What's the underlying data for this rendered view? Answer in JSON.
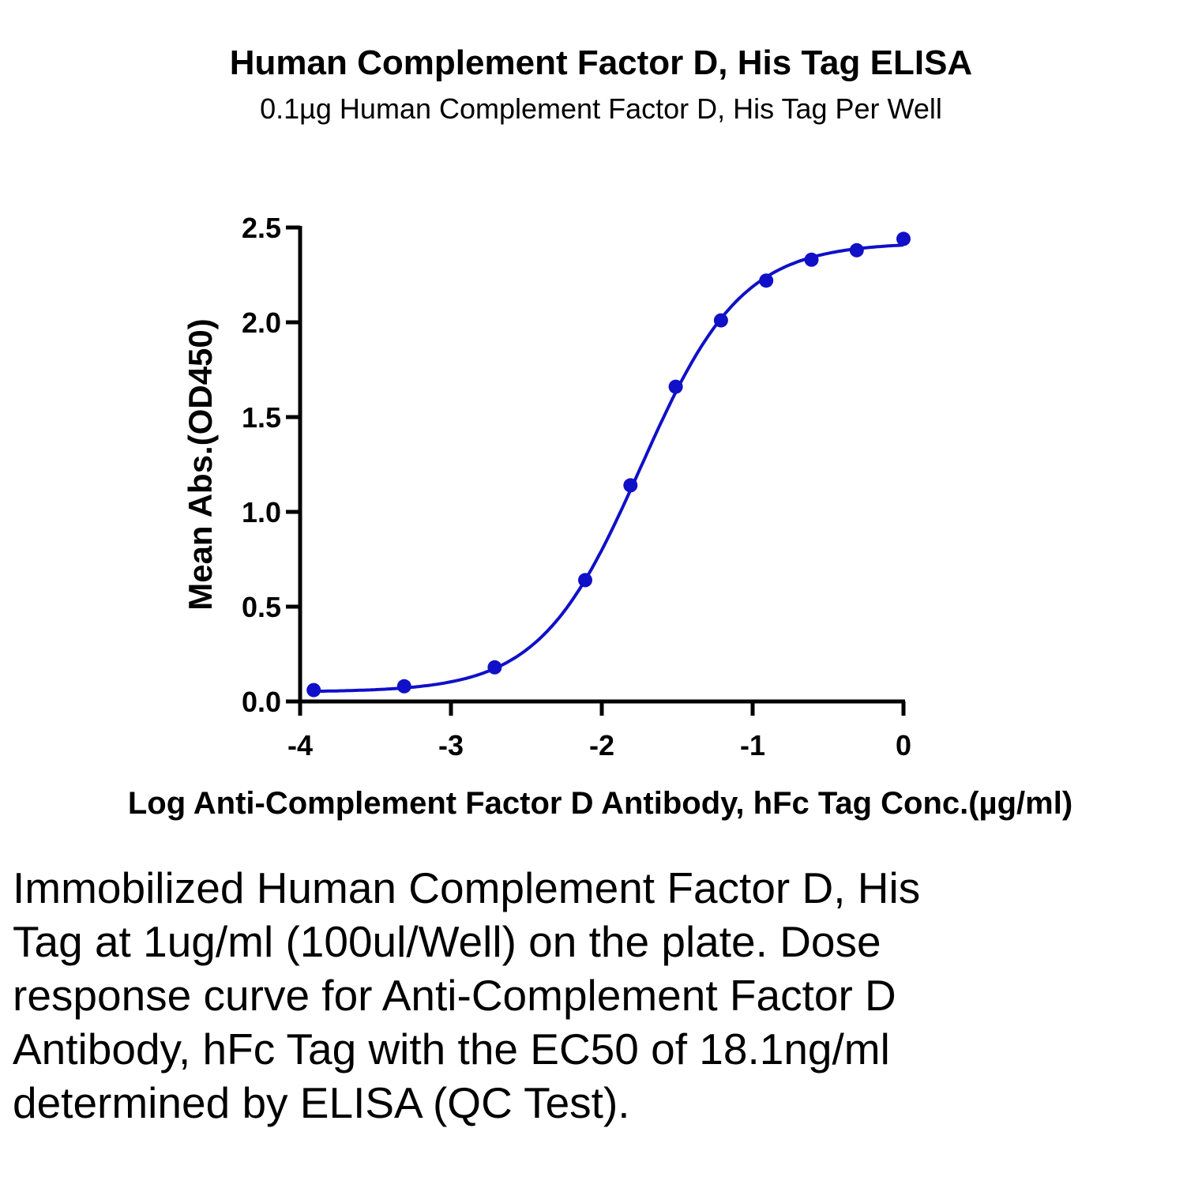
{
  "chart_data": {
    "type": "scatter",
    "title": "Human Complement Factor D, His Tag ELISA",
    "subtitle": "0.1µg Human Complement Factor D, His Tag Per Well",
    "xlabel": "Log Anti-Complement Factor D  Antibody, hFc Tag Conc.(µg/ml)",
    "ylabel": "Mean Abs.(OD450)",
    "xlim": [
      -4,
      0
    ],
    "ylim": [
      0,
      2.5
    ],
    "x_ticks": [
      "-4",
      "-3",
      "-2",
      "-1",
      "0"
    ],
    "y_ticks": [
      "0.0",
      "0.5",
      "1.0",
      "1.5",
      "2.0",
      "2.5"
    ],
    "grid": false,
    "color": "#1010C8",
    "series": [
      {
        "x": [
          -3.91,
          -3.31,
          -2.71,
          -2.11,
          -1.81,
          -1.51,
          -1.21,
          -0.91,
          -0.61,
          -0.31,
          0.0
        ],
        "y": [
          0.06,
          0.08,
          0.18,
          0.64,
          1.14,
          1.66,
          2.01,
          2.22,
          2.33,
          2.38,
          2.44
        ]
      }
    ],
    "fit": {
      "bottom": 0.05,
      "top": 2.42,
      "logEC50": -1.742,
      "hillslope": 1.3
    }
  },
  "caption": "Immobilized Human Complement Factor D, His Tag at 1ug/ml (100ul/Well) on the plate. Dose response curve for Anti-Complement Factor D Antibody, hFc Tag with the EC50 of 18.1ng/ml determined by ELISA (QC Test)."
}
